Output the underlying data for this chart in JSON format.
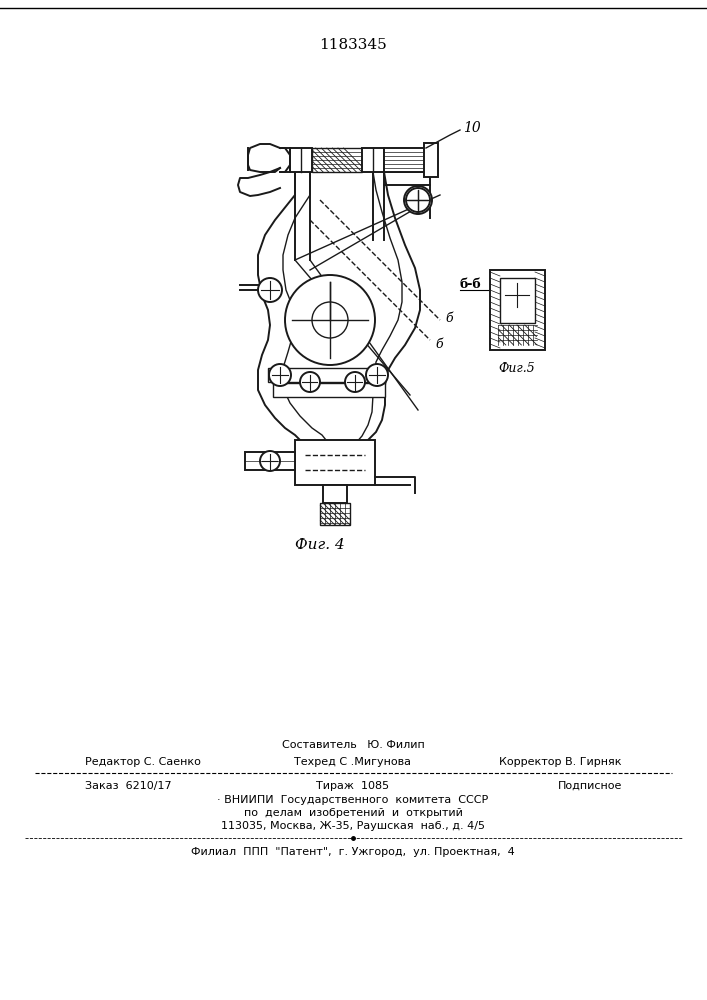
{
  "patent_number": "1183345",
  "bg_color": "#ffffff",
  "fig_width": 7.07,
  "fig_height": 10.0,
  "line_color": "#000000",
  "drawing_color": "#1a1a1a",
  "text_color": "#000000",
  "footer_texts": {
    "sostavitel_label": "Составитель",
    "sostavitel_name": "Ю. Филип",
    "redaktor_label": "Редактор С. Саенко",
    "tehred_label": "Техред С .Мигунова",
    "korrektor_label": "Корректор В. Гирняк",
    "zakaz": "Заказ  6210/17",
    "tirazh": "Тираж  1085",
    "podpisnoe": "Подписное",
    "vnipi_line1": "· ВНИИПИ  Государственного  комитета  СССР",
    "vnipi_line2": "по  делам  изобретений  и  открытий",
    "vnipi_line3": "113035, Москва, Ж-35, Раушская  наб., д. 4/5",
    "filial": "Филиал  ППП  \"Патент\",  г. Ужгород,  ул. Проектная,  4"
  }
}
